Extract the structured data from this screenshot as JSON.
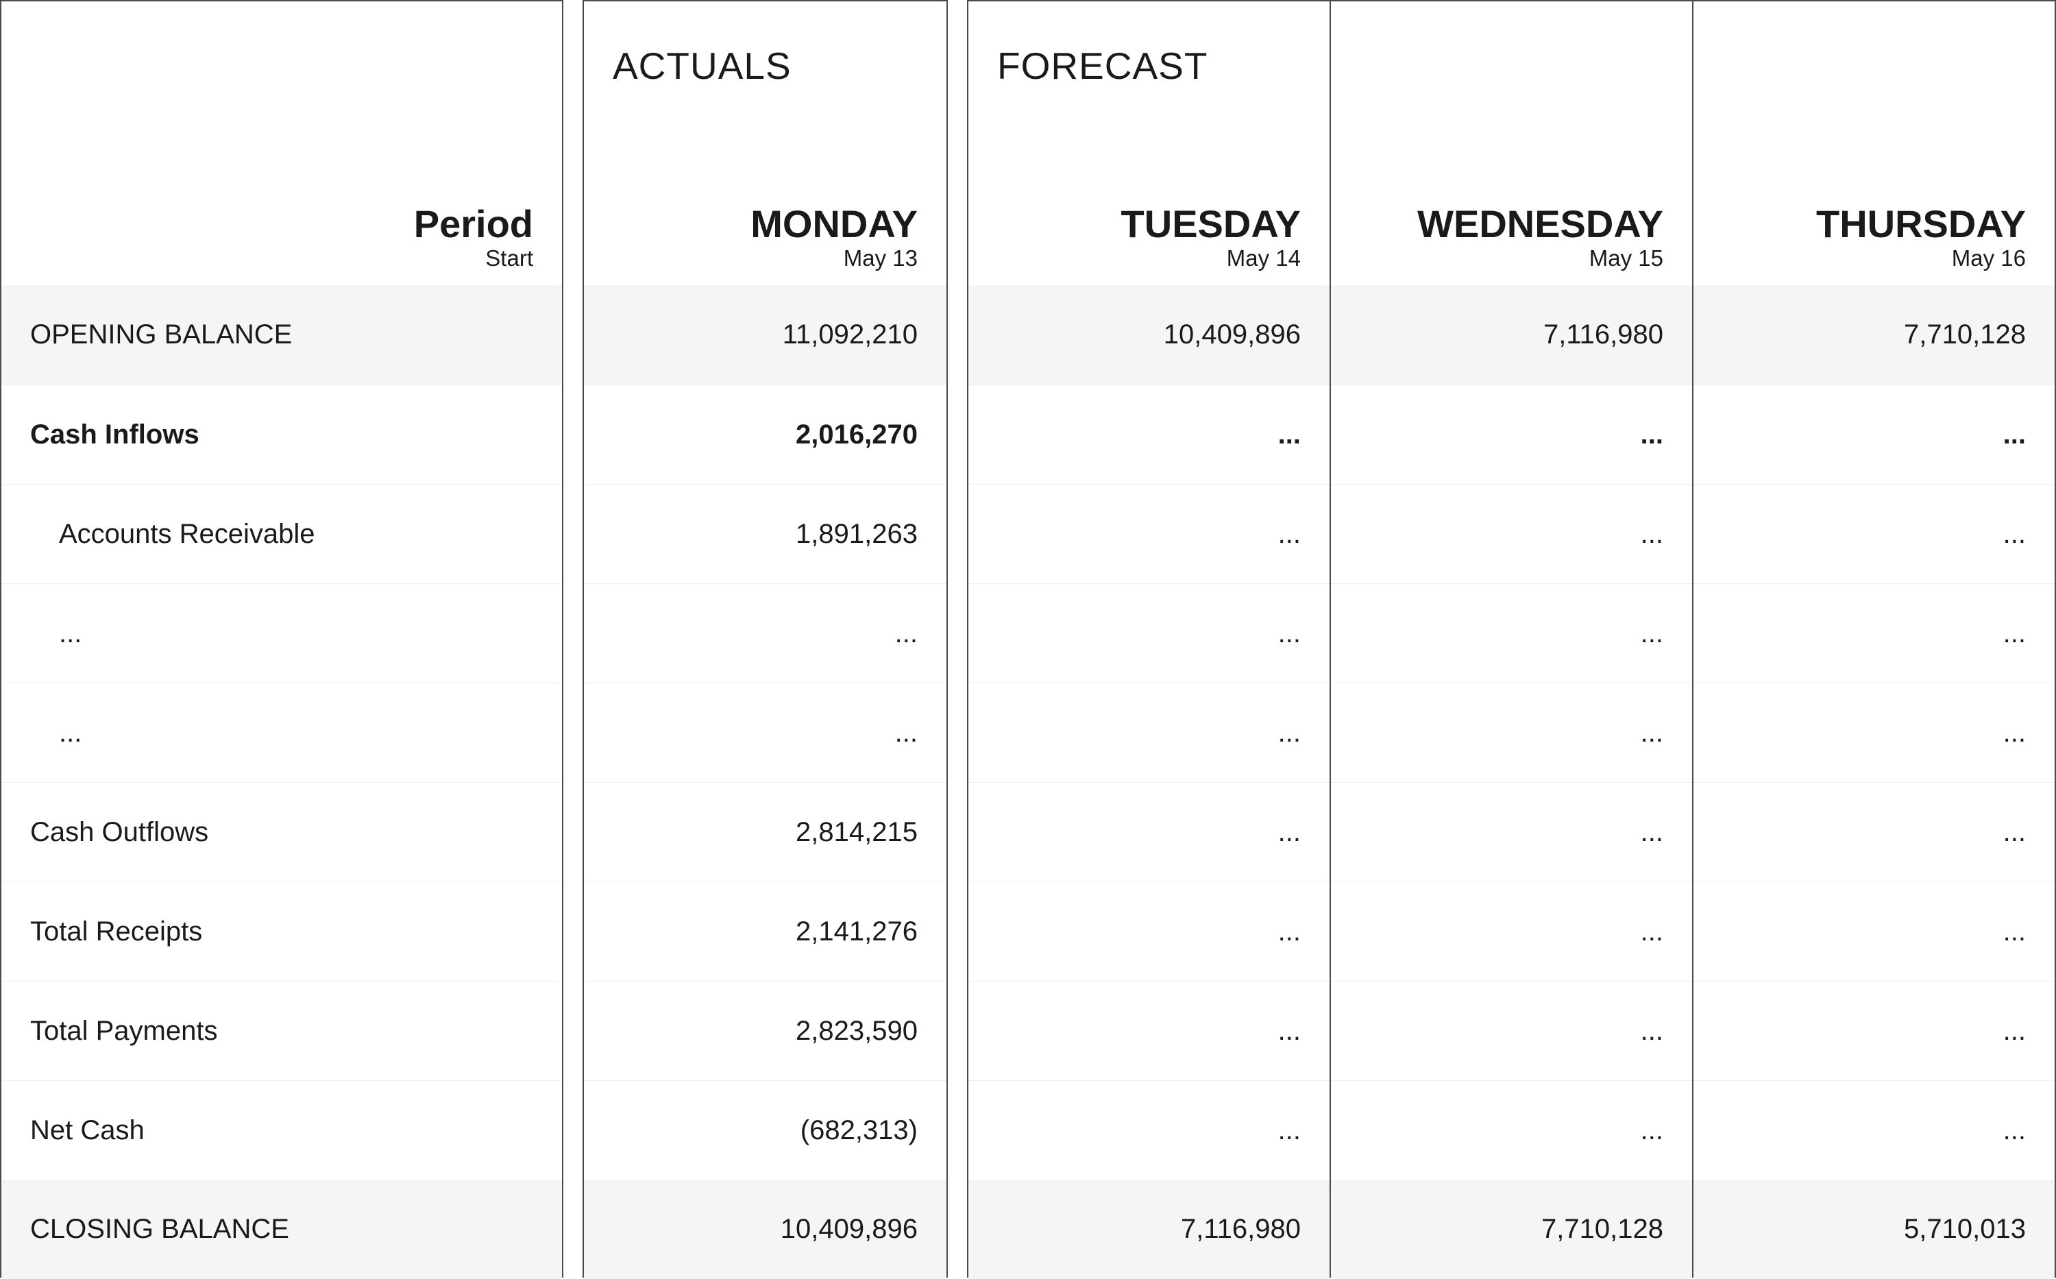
{
  "labels_panel": {
    "header": {
      "title": "Period",
      "subtitle": "Start"
    },
    "rows": [
      "OPENING BALANCE",
      "Cash Inflows",
      "Accounts Receivable",
      "...",
      "...",
      "Cash Outflows",
      "Total Receipts",
      "Total Payments",
      "Net Cash",
      "CLOSING BALANCE"
    ]
  },
  "actuals": {
    "section_title": "ACTUALS",
    "column": {
      "day": "MONDAY",
      "date": "May 13",
      "values": [
        "11,092,210",
        "2,016,270",
        "1,891,263",
        "...",
        "...",
        "2,814,215",
        "2,141,276",
        "2,823,590",
        "(682,313)",
        "10,409,896"
      ]
    }
  },
  "forecast": {
    "section_title": "FORECAST",
    "columns": [
      {
        "day": "TUESDAY",
        "date": "May 14",
        "values": [
          "10,409,896",
          "...",
          "...",
          "...",
          "...",
          "...",
          "...",
          "...",
          "...",
          "7,116,980"
        ]
      },
      {
        "day": "WEDNESDAY",
        "date": "May 15",
        "values": [
          "7,116,980",
          "...",
          "...",
          "...",
          "...",
          "...",
          "...",
          "...",
          "...",
          "7,710,128"
        ]
      },
      {
        "day": "THURSDAY",
        "date": "May 16",
        "values": [
          "7,710,128",
          "...",
          "...",
          "...",
          "...",
          "...",
          "...",
          "...",
          "...",
          "5,710,013"
        ]
      }
    ]
  },
  "colors": {
    "border": "#4a4a4a",
    "row_shade": "#f5f5f5",
    "text": "#1a1a1a"
  }
}
